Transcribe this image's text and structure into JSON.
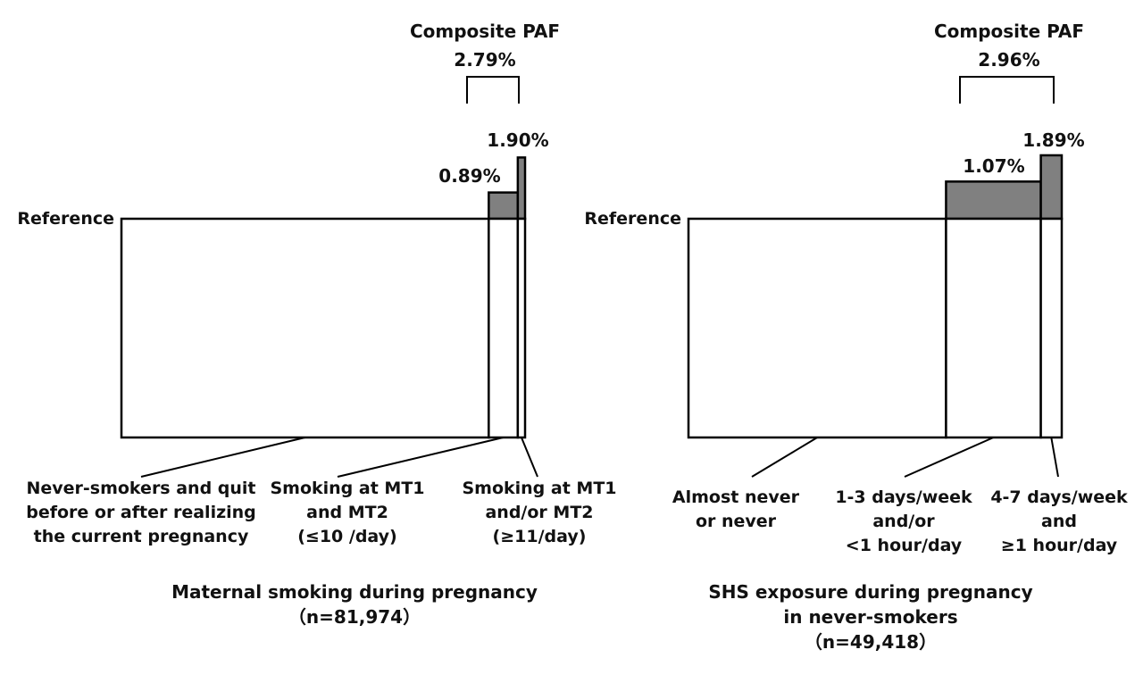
{
  "colors": {
    "extra": "#808080",
    "base": "#ffffff",
    "ink": "#000000"
  },
  "chart_data": [
    {
      "type": "bar",
      "subtype": "PAF bar (variable-width columns, excess above reference shaded)",
      "title": "Maternal smoking during pregnancy",
      "subtitle": "（n=81,974）",
      "reference_label": "Reference",
      "composite_label": "Composite PAF",
      "composite_value": "2.79%",
      "categories": [
        "Never-smokers and quit before or after realizing the current pregnancy",
        "Smoking at MT1 and MT2 (≤10 /day)",
        "Smoking at MT1 and/or MT2 (≥11/day)"
      ],
      "category_lines": [
        [
          "Never-smokers and quit",
          "before or after realizing",
          "the current pregnancy"
        ],
        [
          "Smoking at MT1",
          "and MT2",
          "(≤10 /day)"
        ],
        [
          "Smoking at MT1",
          "and/or MT2",
          "(≥11/day)"
        ]
      ],
      "group_share_pct": [
        91.0,
        7.2,
        1.8
      ],
      "relative_height": [
        1.0,
        1.12,
        1.28
      ],
      "paf_values": [
        null,
        0.89,
        1.9
      ],
      "paf_labels": [
        "",
        "0.89%",
        "1.90%"
      ]
    },
    {
      "type": "bar",
      "subtype": "PAF bar (variable-width columns, excess above reference shaded)",
      "title": "SHS exposure during pregnancy in never-smokers",
      "title_lines": [
        "SHS exposure during pregnancy",
        "in never-smokers"
      ],
      "subtitle": "（n=49,418）",
      "reference_label": "Reference",
      "composite_label": "Composite PAF",
      "composite_value": "2.96%",
      "categories": [
        "Almost never or never",
        "1-3 days/week and/or <1 hour/day",
        "4-7 days/week and ≥1 hour/day"
      ],
      "category_lines": [
        [
          "Almost never",
          "or never"
        ],
        [
          "1-3 days/week",
          "and/or",
          "<1 hour/day"
        ],
        [
          "4-7 days/week",
          "and",
          "≥1 hour/day"
        ]
      ],
      "group_share_pct": [
        69.0,
        25.4,
        5.6
      ],
      "relative_height": [
        1.0,
        1.17,
        1.29
      ],
      "paf_values": [
        null,
        1.07,
        1.89
      ],
      "paf_labels": [
        "",
        "1.07%",
        "1.89%"
      ]
    }
  ]
}
